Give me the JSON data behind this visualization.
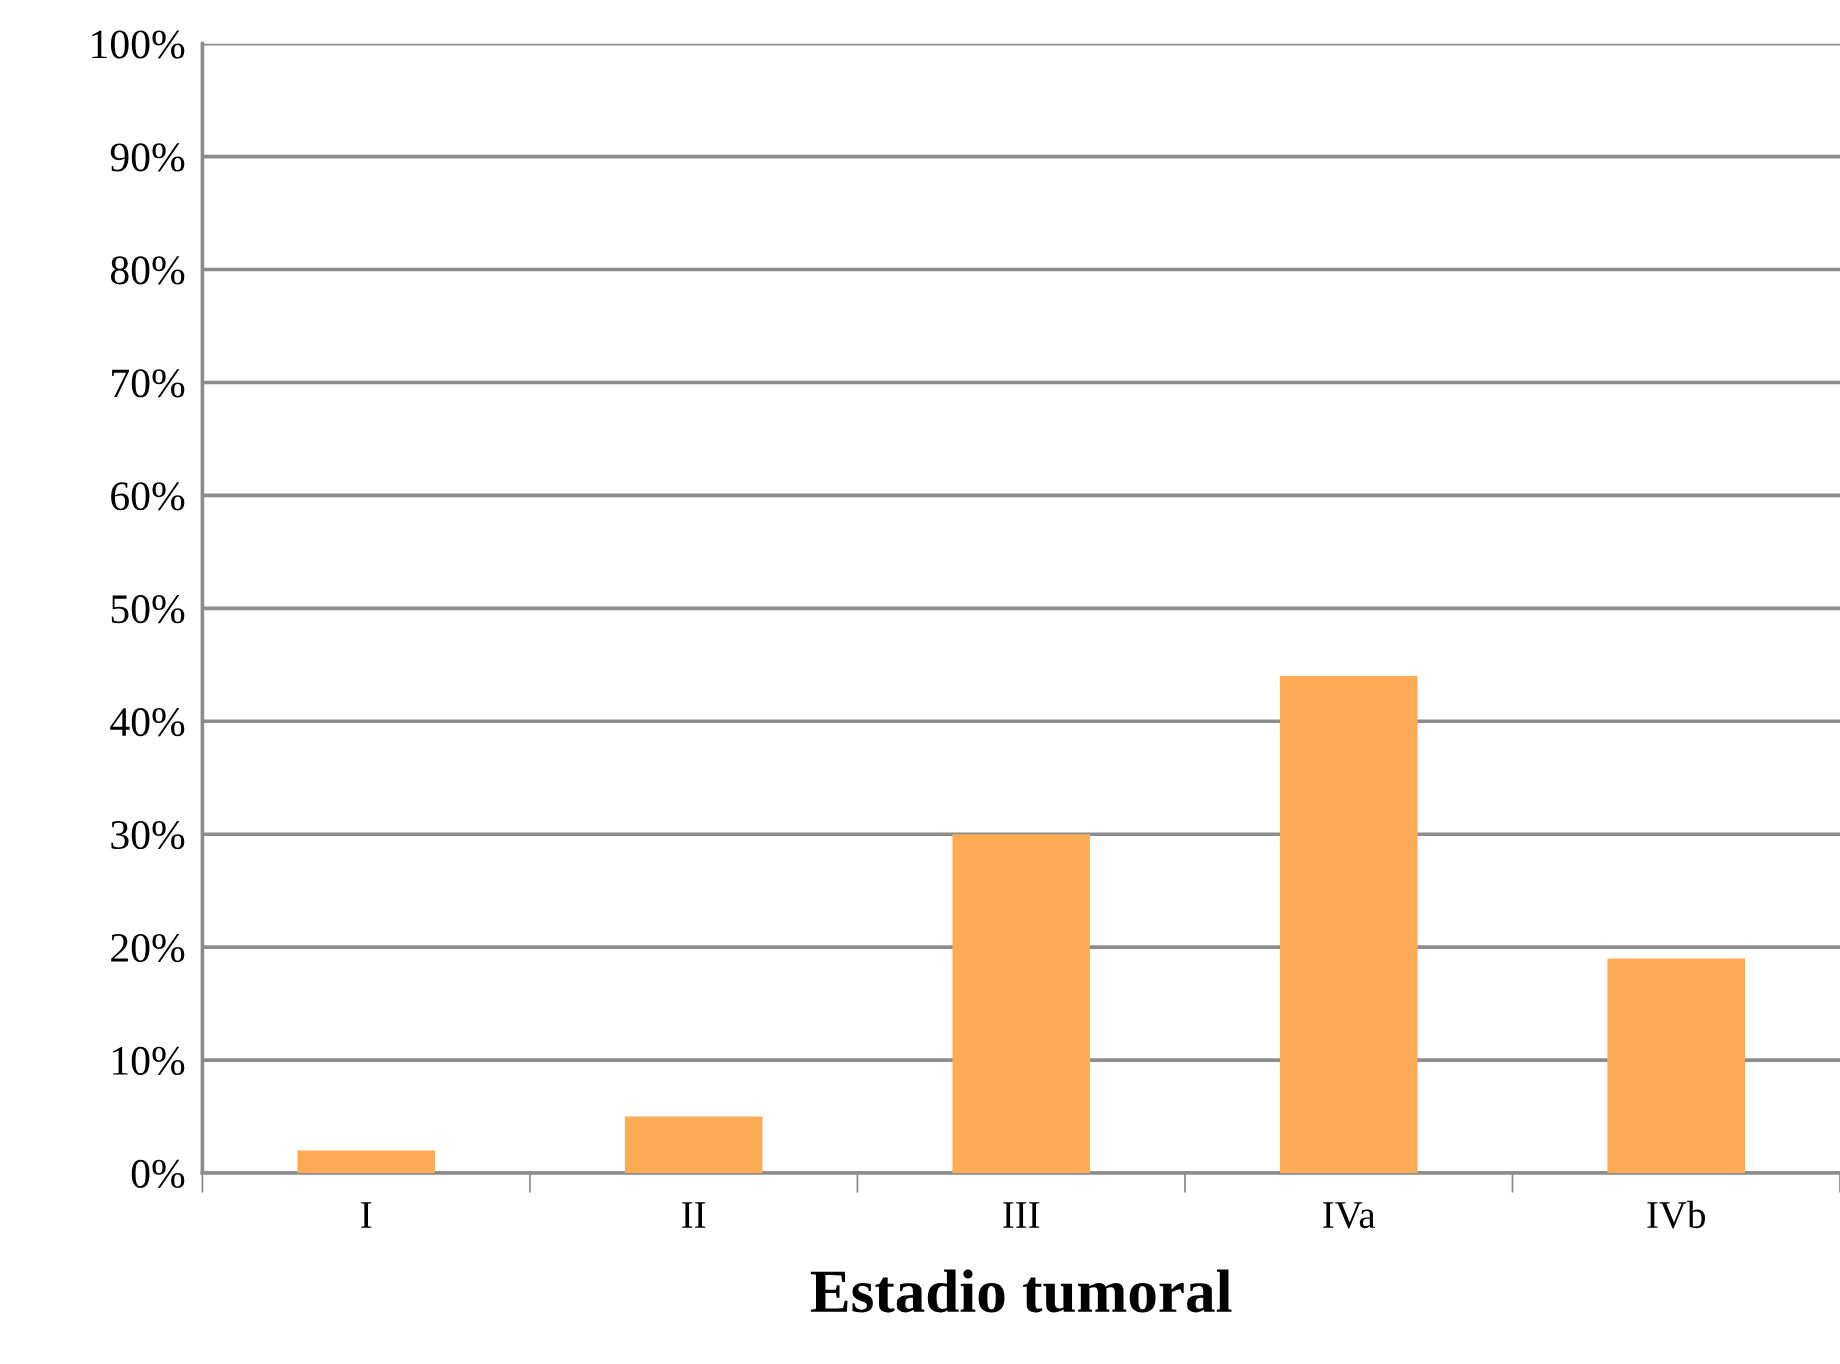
{
  "chart_data": {
    "type": "bar",
    "xlabel": "Estadio tumoral",
    "categories": [
      "I",
      "II",
      "III",
      "IVa",
      "IVb"
    ],
    "values": [
      2,
      5,
      30,
      44,
      19
    ],
    "color": "#fdac55",
    "ylim": [
      0,
      100
    ],
    "yticks": [
      {
        "value": 0,
        "label": "0%"
      },
      {
        "value": 10,
        "label": "10%"
      },
      {
        "value": 20,
        "label": "20%"
      },
      {
        "value": 30,
        "label": "30%"
      },
      {
        "value": 40,
        "label": "40%"
      },
      {
        "value": 50,
        "label": "50%"
      },
      {
        "value": 60,
        "label": "60%"
      },
      {
        "value": 70,
        "label": "70%"
      },
      {
        "value": 80,
        "label": "80%"
      },
      {
        "value": 90,
        "label": "90%"
      },
      {
        "value": 100,
        "label": "100%"
      }
    ],
    "grid": "y",
    "legend": false
  }
}
